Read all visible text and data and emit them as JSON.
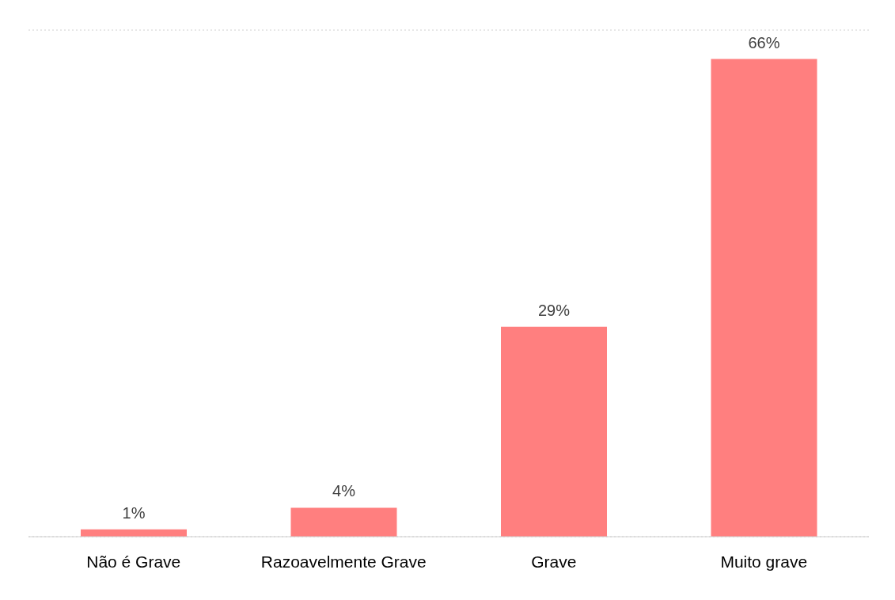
{
  "chart_data": {
    "type": "bar",
    "categories": [
      "Não é Grave",
      "Razoavelmente Grave",
      "Grave",
      "Muito grave"
    ],
    "values": [
      1,
      4,
      29,
      66
    ],
    "color": "#ff7f7f",
    "value_labels": [
      "1%",
      "4%",
      "29%",
      "66%"
    ],
    "ylim": [
      0,
      70
    ],
    "grid": "y",
    "tick_labels": "x",
    "legend": false
  }
}
